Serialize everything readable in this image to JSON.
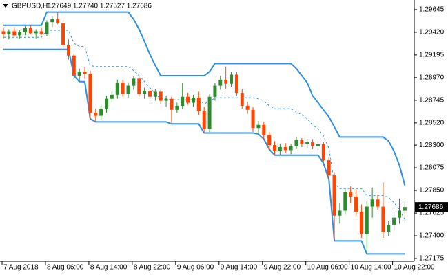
{
  "chart_data": {
    "type": "candlestick",
    "title": "GBPUSD,H1",
    "subtitle": "1.27649 1.27740 1.27527 1.27686",
    "categories": [
      "7 Aug 2018",
      null,
      null,
      null,
      null,
      null,
      null,
      null,
      "8 Aug 06:00",
      null,
      null,
      null,
      null,
      null,
      null,
      null,
      "8 Aug 14:00",
      null,
      null,
      null,
      null,
      null,
      null,
      null,
      "8 Aug 22:00",
      null,
      null,
      null,
      null,
      null,
      null,
      null,
      "9 Aug 06:00",
      null,
      null,
      null,
      null,
      null,
      null,
      null,
      "9 Aug 14:00",
      null,
      null,
      null,
      null,
      null,
      null,
      null,
      "9 Aug 22:00",
      null,
      null,
      null,
      null,
      null,
      null,
      null,
      "10 Aug 06:00",
      null,
      null,
      null,
      null,
      null,
      null,
      null,
      "10 Aug 14:00",
      null,
      null,
      null,
      null,
      null,
      null,
      null,
      "10 Aug 22:00",
      null,
      null
    ],
    "open": [
      1.2943,
      1.294,
      1.2943,
      1.2939,
      1.2942,
      1.2946,
      1.2941,
      1.2943,
      1.294,
      1.2952,
      1.2955,
      1.2951,
      1.2929,
      1.2919,
      1.2899,
      1.2903,
      1.2901,
      1.2862,
      1.2859,
      1.2866,
      1.2876,
      1.288,
      1.2892,
      1.2881,
      1.2889,
      1.2896,
      1.2881,
      1.2884,
      1.2878,
      1.2883,
      1.2874,
      1.2876,
      1.2865,
      1.2869,
      1.2878,
      1.2872,
      1.2877,
      1.2864,
      1.2846,
      1.2878,
      1.2889,
      1.2895,
      1.2891,
      1.29,
      1.2882,
      1.2869,
      1.2865,
      1.2847,
      1.285,
      1.284,
      1.283,
      1.2824,
      1.2828,
      1.2825,
      1.2829,
      1.2835,
      1.2831,
      1.2833,
      1.2829,
      1.2831,
      1.2815,
      1.28,
      1.276,
      1.2765,
      1.2783,
      1.2779,
      1.2764,
      1.2742,
      1.2769,
      1.2776,
      1.2769,
      1.2744,
      1.2751,
      1.2758,
      1.27649
    ],
    "high": [
      1.2947,
      1.2945,
      1.2947,
      1.2944,
      1.2948,
      1.2949,
      1.2945,
      1.2947,
      1.2954,
      1.2958,
      1.2962,
      1.2954,
      1.2935,
      1.2921,
      1.2906,
      1.2908,
      1.2904,
      1.2866,
      1.2869,
      1.2879,
      1.2883,
      1.2895,
      1.2895,
      1.2892,
      1.2899,
      1.2898,
      1.2887,
      1.2888,
      1.2886,
      1.2885,
      1.2879,
      1.2878,
      1.2872,
      1.2892,
      1.2882,
      1.288,
      1.2883,
      1.2868,
      1.2881,
      1.2892,
      1.2899,
      1.2908,
      1.2903,
      1.2903,
      1.2886,
      1.2873,
      1.2868,
      1.2854,
      1.2853,
      1.2843,
      1.2834,
      1.2831,
      1.2832,
      1.2831,
      1.2838,
      1.2837,
      1.2836,
      1.2836,
      1.2834,
      1.2833,
      1.2818,
      1.2803,
      1.2772,
      1.2787,
      1.2789,
      1.2786,
      1.2771,
      1.2774,
      1.2788,
      1.2781,
      1.2793,
      1.2755,
      1.2762,
      1.2777,
      1.2774
    ],
    "low": [
      1.2936,
      1.2935,
      1.2938,
      1.2936,
      1.2939,
      1.294,
      1.2936,
      1.2939,
      1.2938,
      1.2947,
      1.295,
      1.2926,
      1.2915,
      1.2895,
      1.2893,
      1.2896,
      1.2856,
      1.2853,
      1.2855,
      1.2862,
      1.2872,
      1.2876,
      1.2878,
      1.2877,
      1.2885,
      1.2878,
      1.2876,
      1.2875,
      1.2874,
      1.2871,
      1.2868,
      1.2852,
      1.2862,
      1.2866,
      1.287,
      1.2868,
      1.286,
      1.2842,
      1.2843,
      1.2874,
      1.2885,
      1.2886,
      1.2888,
      1.2879,
      1.2866,
      1.2861,
      1.2843,
      1.2841,
      1.2836,
      1.2826,
      1.282,
      1.282,
      1.2822,
      1.2821,
      1.2826,
      1.2828,
      1.2827,
      1.2826,
      1.2825,
      1.2812,
      1.2796,
      1.2735,
      1.2752,
      1.2761,
      1.2772,
      1.276,
      1.2738,
      1.2722,
      1.2758,
      1.2766,
      1.2738,
      1.274,
      1.2745,
      1.2752,
      1.27527
    ],
    "close": [
      1.294,
      1.2943,
      1.2939,
      1.2942,
      1.2946,
      1.2941,
      1.2943,
      1.294,
      1.2952,
      1.2955,
      1.2951,
      1.2929,
      1.2919,
      1.2899,
      1.2903,
      1.2901,
      1.2862,
      1.2859,
      1.2866,
      1.2876,
      1.288,
      1.2892,
      1.2881,
      1.2889,
      1.2896,
      1.2881,
      1.2884,
      1.2878,
      1.2883,
      1.2874,
      1.2876,
      1.2865,
      1.2869,
      1.2878,
      1.2872,
      1.2877,
      1.2864,
      1.2846,
      1.2878,
      1.2889,
      1.2895,
      1.2891,
      1.29,
      1.2882,
      1.2869,
      1.2865,
      1.2847,
      1.285,
      1.284,
      1.283,
      1.2824,
      1.2828,
      1.2825,
      1.2829,
      1.2835,
      1.2831,
      1.2833,
      1.2829,
      1.2831,
      1.2815,
      1.28,
      1.276,
      1.2765,
      1.2783,
      1.2779,
      1.2764,
      1.2742,
      1.2769,
      1.2776,
      1.2769,
      1.2744,
      1.2751,
      1.2758,
      1.2765,
      1.27686
    ],
    "up_color": "#2e8b2e",
    "down_color": "#ff4500",
    "channel": {
      "color": "#2c8ee6",
      "upper": [
        1.2949,
        1.2949,
        1.2949,
        1.2949,
        1.2949,
        1.2949,
        1.2949,
        1.2949,
        1.2962,
        1.2962,
        1.2962,
        1.2962,
        1.2962,
        1.2962,
        1.2962,
        1.2962,
        1.2962,
        1.2962,
        1.2962,
        1.2962,
        1.2962,
        1.2962,
        1.2962,
        1.2962,
        1.2955,
        1.2945,
        1.2933,
        1.292,
        1.2909,
        1.2899,
        1.2899,
        1.2899,
        1.2899,
        1.2899,
        1.2899,
        1.2899,
        1.2899,
        1.2899,
        1.2903,
        1.2911,
        1.2911,
        1.2911,
        1.2911,
        1.2911,
        1.2911,
        1.2911,
        1.2911,
        1.2911,
        1.2911,
        1.2911,
        1.2911,
        1.2911,
        1.2911,
        1.2911,
        1.2906,
        1.2899,
        1.2892,
        1.2879,
        1.2872,
        1.2865,
        1.2858,
        1.2848,
        1.2838,
        1.2838,
        1.2838,
        1.2838,
        1.2838,
        1.2838,
        1.2838,
        1.2838,
        1.2838,
        1.2834,
        1.2824,
        1.281,
        1.279
      ],
      "middle": [
        1.2937,
        1.2937,
        1.2937,
        1.2937,
        1.2937,
        1.2937,
        1.2937,
        1.2937,
        1.2944,
        1.2944,
        1.2944,
        1.2944,
        1.2944,
        1.2931,
        1.2928,
        1.2928,
        1.2909,
        1.2908,
        1.2908,
        1.2908,
        1.2908,
        1.2908,
        1.2908,
        1.2908,
        1.2904,
        1.2899,
        1.2893,
        1.2887,
        1.2881,
        1.2876,
        1.2876,
        1.2875,
        1.2875,
        1.2875,
        1.2875,
        1.2875,
        1.2875,
        1.2871,
        1.2873,
        1.2877,
        1.2877,
        1.2877,
        1.2877,
        1.2877,
        1.2877,
        1.2877,
        1.2877,
        1.2876,
        1.2874,
        1.2869,
        1.2866,
        1.2866,
        1.2866,
        1.2866,
        1.2863,
        1.286,
        1.2856,
        1.285,
        1.2846,
        1.2839,
        1.2827,
        1.2792,
        1.2787,
        1.2787,
        1.2787,
        1.2787,
        1.2787,
        1.278,
        1.278,
        1.278,
        1.278,
        1.2778,
        1.2773,
        1.2766,
        1.2756
      ],
      "lower": [
        1.2925,
        1.2925,
        1.2925,
        1.2925,
        1.2925,
        1.2925,
        1.2925,
        1.2925,
        1.2925,
        1.2925,
        1.2925,
        1.2925,
        1.2925,
        1.2899,
        1.2893,
        1.2893,
        1.2856,
        1.2853,
        1.2853,
        1.2853,
        1.2853,
        1.2853,
        1.2853,
        1.2853,
        1.2853,
        1.2853,
        1.2853,
        1.2853,
        1.2853,
        1.2853,
        1.2853,
        1.2851,
        1.2851,
        1.2851,
        1.2851,
        1.2851,
        1.2851,
        1.2842,
        1.2842,
        1.2842,
        1.2842,
        1.2842,
        1.2842,
        1.2842,
        1.2842,
        1.2842,
        1.2842,
        1.2841,
        1.2836,
        1.2826,
        1.282,
        1.282,
        1.282,
        1.282,
        1.282,
        1.282,
        1.282,
        1.282,
        1.282,
        1.2812,
        1.2796,
        1.2735,
        1.2735,
        1.2735,
        1.2735,
        1.2735,
        1.2735,
        1.2722,
        1.2722,
        1.2722,
        1.2722,
        1.2722,
        1.2722,
        1.2722,
        1.2722
      ]
    },
    "ylim": [
      1.27148,
      1.2974
    ],
    "yticks": [
      {
        "value": 1.29645,
        "label": "1.29645"
      },
      {
        "value": 1.2942,
        "label": "1.29420"
      },
      {
        "value": 1.29195,
        "label": "1.29195"
      },
      {
        "value": 1.2897,
        "label": "1.28970"
      },
      {
        "value": 1.28745,
        "label": "1.28745"
      },
      {
        "value": 1.2852,
        "label": "1.28520"
      },
      {
        "value": 1.283,
        "label": "1.28300"
      },
      {
        "value": 1.28075,
        "label": "1.28075"
      },
      {
        "value": 1.2785,
        "label": "1.27850"
      },
      {
        "value": 1.27625,
        "label": "1.27625"
      },
      {
        "value": 1.274,
        "label": "1.27400"
      },
      {
        "value": 1.27175,
        "label": "1.27175"
      }
    ]
  }
}
